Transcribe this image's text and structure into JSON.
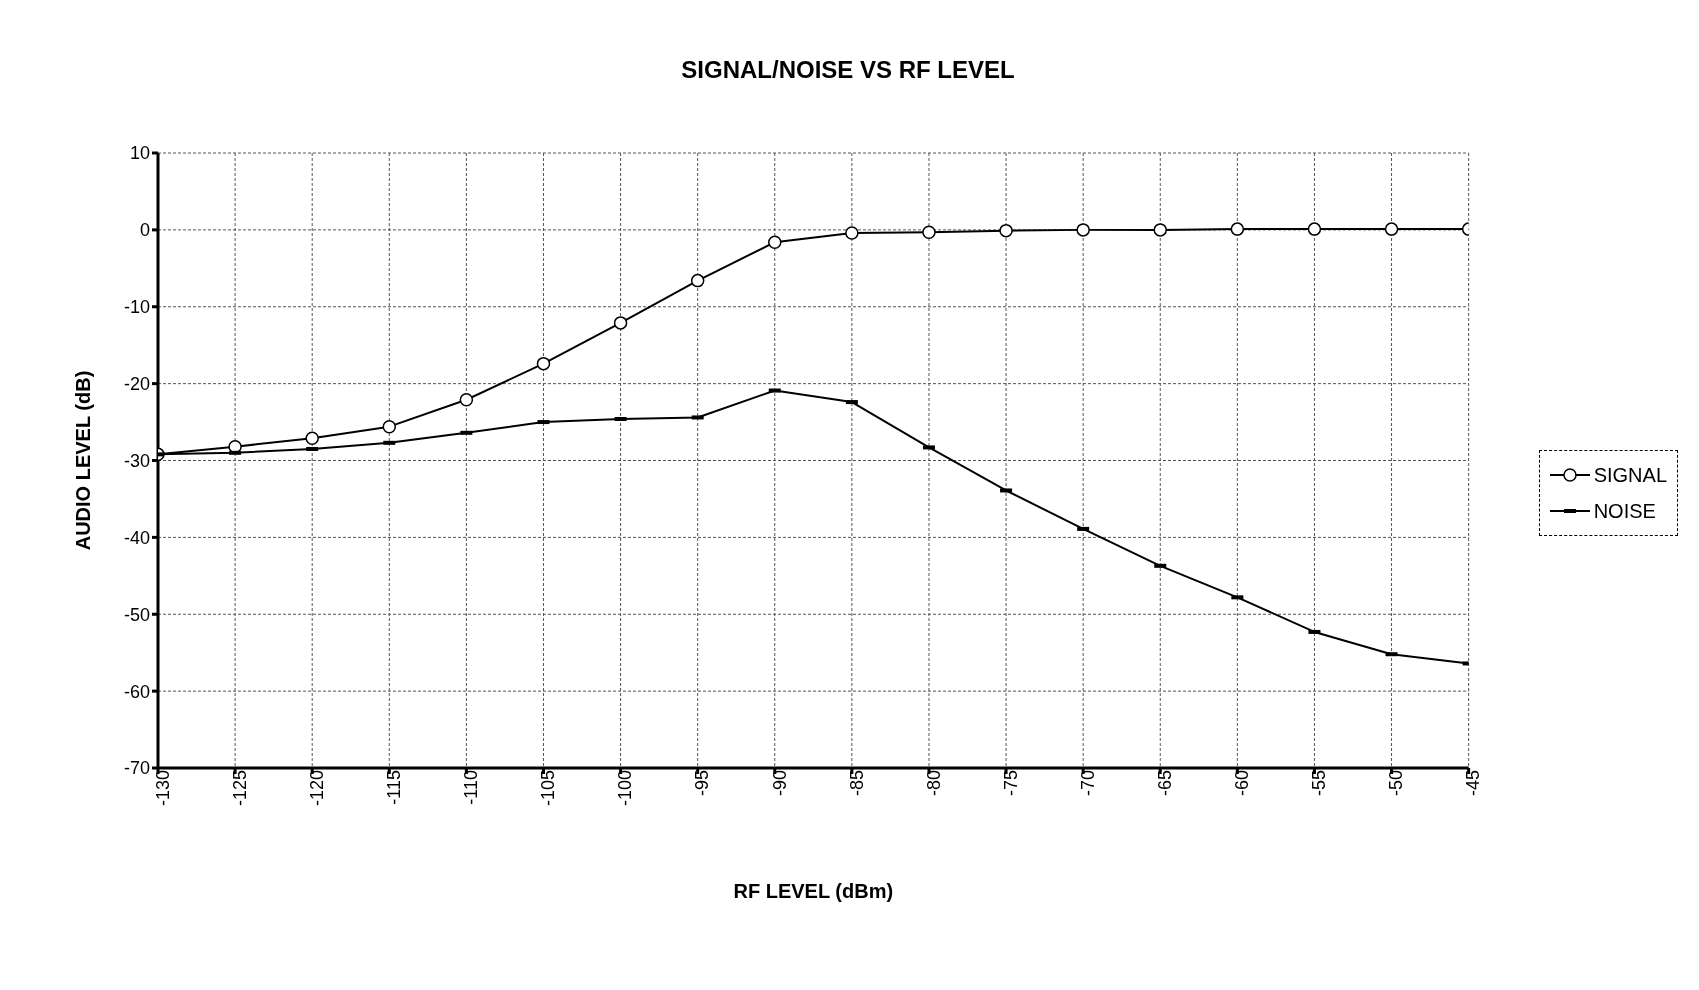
{
  "chart_data": {
    "type": "line",
    "title": "SIGNAL/NOISE VS RF LEVEL",
    "xlabel": "RF LEVEL (dBm)",
    "ylabel": "AUDIO LEVEL (dB)",
    "x": [
      -130,
      -125,
      -120,
      -115,
      -110,
      -105,
      -100,
      -95,
      -90,
      -85,
      -80,
      -75,
      -70,
      -65,
      -60,
      -55,
      -50,
      -45
    ],
    "series": [
      {
        "name": "SIGNAL",
        "color": "#000000",
        "marker": "circle",
        "values": [
          -29.2,
          -28.2,
          -27.1,
          -25.6,
          -22.1,
          -17.4,
          -12.1,
          -6.6,
          -1.6,
          -0.4,
          -0.3,
          -0.1,
          0,
          0,
          0.1,
          0.1,
          0.1,
          0.1
        ]
      },
      {
        "name": "NOISE",
        "color": "#000000",
        "marker": "square",
        "values": [
          -29.2,
          -29,
          -28.5,
          -27.7,
          -26.4,
          -25,
          -24.6,
          -24.4,
          -20.9,
          -22.4,
          -28.3,
          -33.9,
          -38.9,
          -43.7,
          -47.8,
          -52.3,
          -55.2,
          -56.4
        ]
      }
    ],
    "xlim": [
      -130,
      -45
    ],
    "xticks": [
      -130,
      -125,
      -120,
      -115,
      -110,
      -105,
      -100,
      -95,
      -90,
      -85,
      -80,
      -75,
      -70,
      -65,
      -60,
      -55,
      -50,
      -45
    ],
    "ylim": [
      -70,
      10
    ],
    "yticks": [
      -70,
      -60,
      -50,
      -40,
      -30,
      -20,
      -10,
      0,
      10
    ],
    "grid": true,
    "legend": "right",
    "line_style": "solid"
  }
}
